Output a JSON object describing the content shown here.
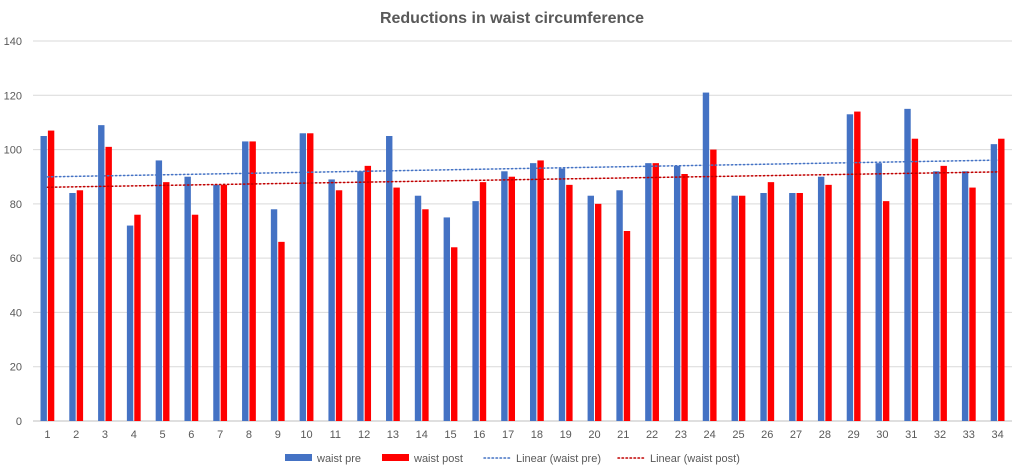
{
  "chart_data": {
    "type": "bar",
    "title": "Reductions in waist circumference",
    "categories": [
      "1",
      "2",
      "3",
      "4",
      "5",
      "6",
      "7",
      "8",
      "9",
      "10",
      "11",
      "12",
      "13",
      "14",
      "15",
      "16",
      "17",
      "18",
      "19",
      "20",
      "21",
      "22",
      "23",
      "24",
      "25",
      "26",
      "27",
      "28",
      "29",
      "30",
      "31",
      "32",
      "33",
      "34"
    ],
    "series": [
      {
        "name": "waist pre",
        "color": "#4472c4",
        "values": [
          105,
          84,
          109,
          72,
          96,
          90,
          87,
          103,
          78,
          106,
          89,
          92,
          105,
          83,
          75,
          81,
          92,
          95,
          93,
          83,
          85,
          95,
          94,
          121,
          83,
          84,
          84,
          90,
          113,
          95,
          115,
          92,
          92,
          102
        ]
      },
      {
        "name": "waist post",
        "color": "#ff0000",
        "values": [
          107,
          85,
          101,
          76,
          88,
          76,
          87,
          103,
          66,
          106,
          85,
          94,
          86,
          78,
          64,
          88,
          90,
          96,
          87,
          80,
          70,
          95,
          91,
          100,
          83,
          88,
          84,
          87,
          114,
          81,
          104,
          94,
          86,
          104
        ]
      }
    ],
    "trendlines": [
      {
        "name": "Linear (waist pre)",
        "type": "linear",
        "series": "waist pre",
        "color": "#4472c4"
      },
      {
        "name": "Linear (waist post)",
        "type": "linear",
        "series": "waist post",
        "color": "#c00000"
      }
    ],
    "ylim": [
      0,
      140
    ],
    "yticks": [
      0,
      20,
      40,
      60,
      80,
      100,
      120,
      140
    ],
    "xlabel": "",
    "ylabel": "",
    "grid": true,
    "legend_position": "bottom"
  }
}
